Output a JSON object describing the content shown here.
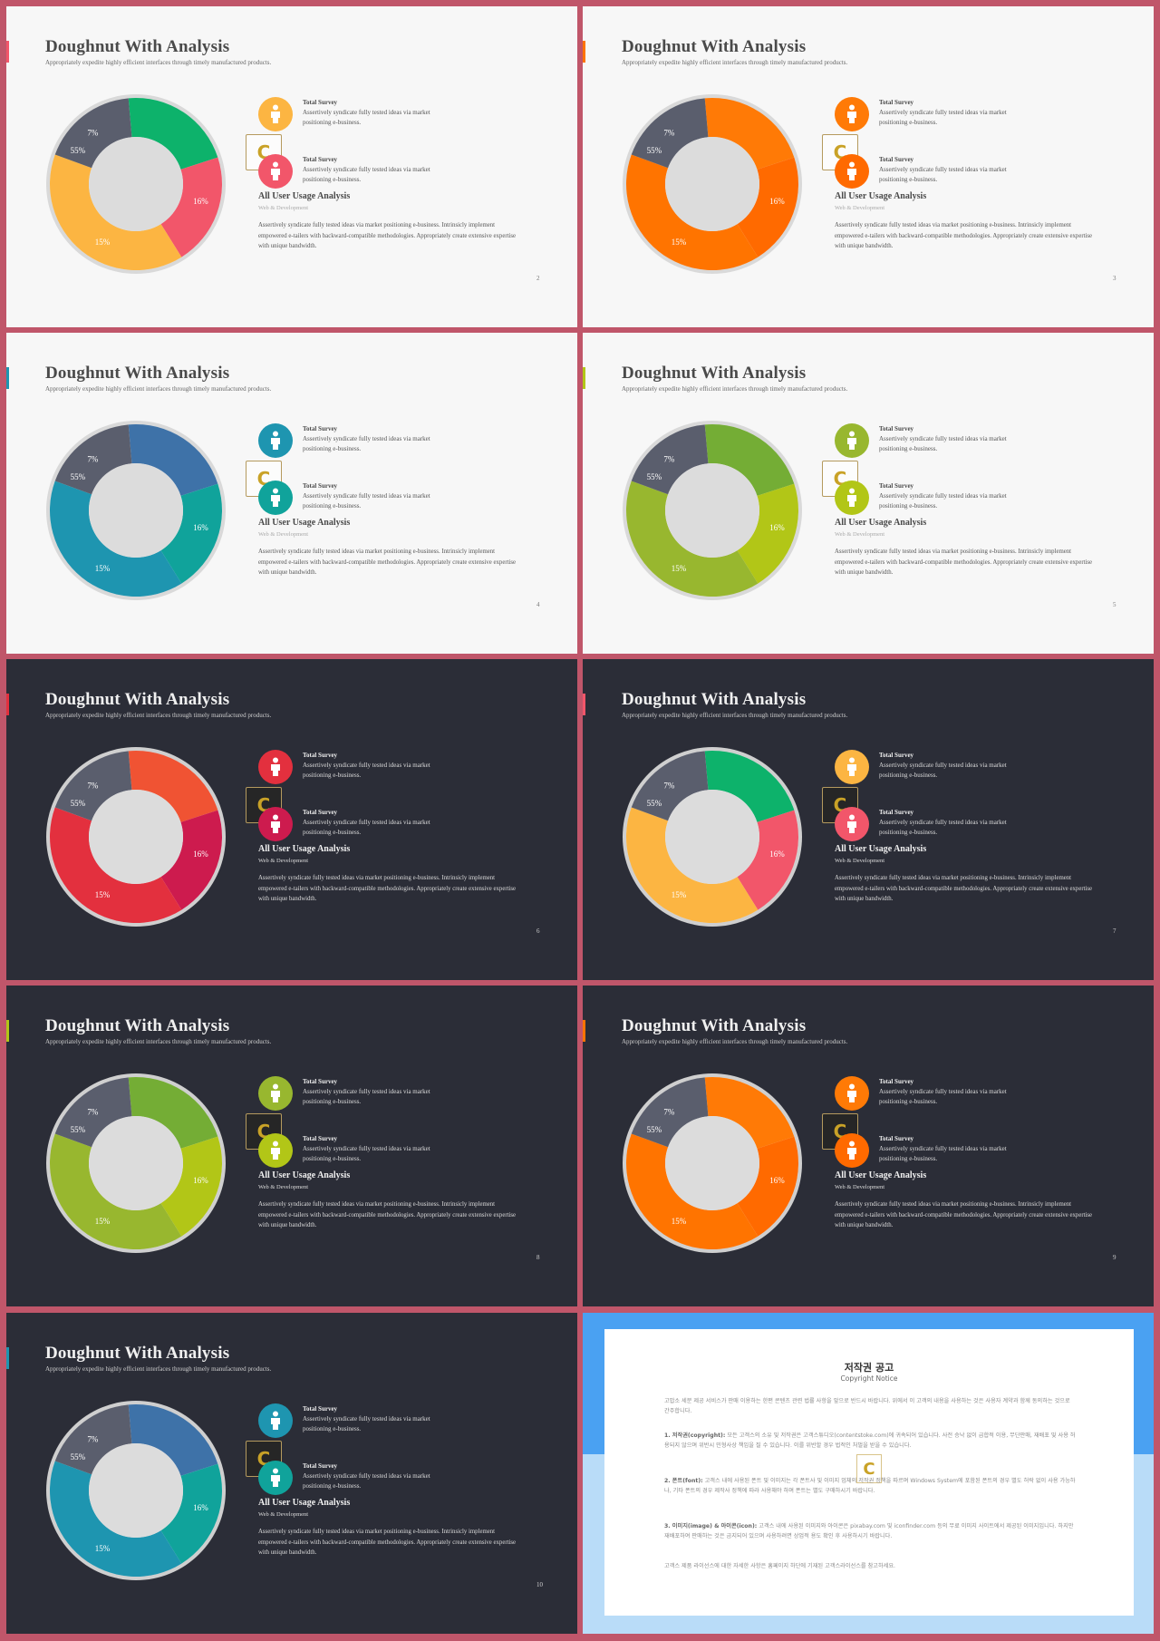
{
  "slide_title": "Doughnut With Analysis",
  "slide_subtitle": "Appropriately expedite highly efficient interfaces through timely manufactured products.",
  "survey_label": "Total Survey",
  "survey_text": "Assertively syndicate fully tested ideas via market positioning e-business.",
  "analysis_title": "All User Usage Analysis",
  "analysis_subtitle": "Web & Development",
  "analysis_text": "Assertively syndicate fully tested ideas via market positioning e-business. Intrinsicly implement empowered e-tailers with backward-compatible methodologies. Appropriately create extensive expertise with unique bandwidth.",
  "logo_letter": "C",
  "labels": [
    "55%",
    "16%",
    "15%",
    "7%"
  ],
  "chart_data": {
    "type": "pie",
    "style": "doughnut",
    "categories": [
      "55%",
      "16%",
      "15%",
      "7%"
    ],
    "values": [
      55,
      16,
      15,
      7
    ]
  },
  "slides": [
    {
      "page": "2",
      "theme": "light",
      "colors": [
        "#0db26b",
        "#f2566a",
        "#fcb542",
        "#5a5e6d"
      ],
      "icon1": "#fcb542",
      "icon2": "#f2566a",
      "accent": "#f2566a"
    },
    {
      "page": "3",
      "theme": "light",
      "colors": [
        "#ff7a06",
        "#ff6a00",
        "#ff7400",
        "#5a5e6d"
      ],
      "icon1": "#ff7a06",
      "icon2": "#ff6a00",
      "accent": "#ff7400"
    },
    {
      "page": "4",
      "theme": "light",
      "colors": [
        "#3e72a8",
        "#10a39b",
        "#1e95b0",
        "#5a5e6d"
      ],
      "icon1": "#1e95b0",
      "icon2": "#10a39b",
      "accent": "#1e95b0"
    },
    {
      "page": "5",
      "theme": "light",
      "colors": [
        "#74ad35",
        "#b2c617",
        "#98b72f",
        "#5a5e6d"
      ],
      "icon1": "#98b72f",
      "icon2": "#b2c617",
      "accent": "#b2c617"
    },
    {
      "page": "6",
      "theme": "dark",
      "colors": [
        "#f05333",
        "#cd1b4e",
        "#e3303e",
        "#5a5e6d"
      ],
      "icon1": "#e3303e",
      "icon2": "#cd1b4e",
      "accent": "#e3303e"
    },
    {
      "page": "7",
      "theme": "dark",
      "colors": [
        "#0db26b",
        "#f2566a",
        "#fcb542",
        "#5a5e6d"
      ],
      "icon1": "#fcb542",
      "icon2": "#f2566a",
      "accent": "#f2566a"
    },
    {
      "page": "8",
      "theme": "dark",
      "colors": [
        "#74ad35",
        "#b2c617",
        "#98b72f",
        "#5a5e6d"
      ],
      "icon1": "#98b72f",
      "icon2": "#b2c617",
      "accent": "#b2c617"
    },
    {
      "page": "9",
      "theme": "dark",
      "colors": [
        "#ff7a06",
        "#ff6a00",
        "#ff7400",
        "#5a5e6d"
      ],
      "icon1": "#ff7a06",
      "icon2": "#ff6a00",
      "accent": "#ff7400"
    },
    {
      "page": "10",
      "theme": "dark",
      "colors": [
        "#3e72a8",
        "#10a39b",
        "#1e95b0",
        "#5a5e6d"
      ],
      "icon1": "#1e95b0",
      "icon2": "#10a39b",
      "accent": "#1e95b0"
    }
  ],
  "copyright": {
    "title": "저작권 공고",
    "subtitle": "Copyright Notice",
    "intro": "고맙소 세분 제공 서비스가 판매 이용하는 한편 콘텐츠 관련 법률 사항을 앞으로 반드시 바랍니다. 위에서 이 고객의 내용을 사용하는 것은 사용자 계약과 함께 동의하는 것으로 간주합니다.",
    "p1_label": "1. 저작권(copyright):",
    "p1": "모든 고객스의 소유 및 저작권은 고객스튜디오(contentstoke.com)에 귀속되어 있습니다. 사전 승낙 없이 급합적 이용, 무단판매, 재배포 및 사용 허용되지 않으며 위반시 민형사상 책임을 질 수 있습니다. 이를 위반할 경우 법적인 처벌을 받을 수 있습니다.",
    "p2_label": "2. 폰트(font):",
    "p2": "고객스 내에 사용된 폰트 및 이미지는 각 폰트사 및 이미지 업체의 저작권 정책을 따르며 Windows System에 포함된 폰트의 경우 별도 허락 없이 사용 가능하나, 기타 폰트의 경우 제작사 정책에 따라 사용해야 하며 폰트는 별도 구매하시기 바랍니다.",
    "p3_label": "3. 이미지(image) & 아이콘(icon):",
    "p3": "고객스 내에 사용된 이미지와 아이콘은 pixabay.com 및 iconfinder.com 등의 무료 이미지 사이트에서 제공된 이미지입니다. 하지만 재배포하여 판매하는 것은 금지되어 있으며 사용하려면 상업적 용도 확인 후 사용하시기 바랍니다.",
    "outro": "고객스 제품 라이선스에 대한 자세한 사항은 홈페이지 하단에 기재된 고객스라이선스를 참고하세요."
  }
}
